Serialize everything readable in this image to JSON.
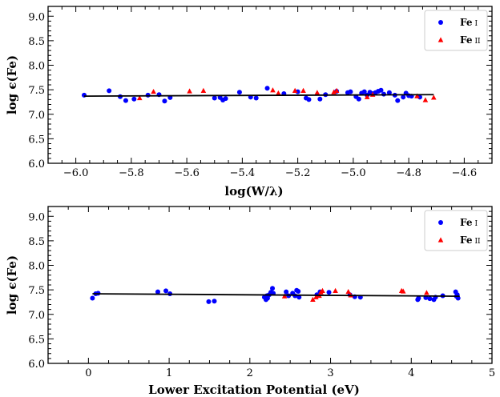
{
  "chart_data": [
    {
      "type": "scatter",
      "xlabel": "log(W/λ)",
      "ylabel": "log ϵ(Fe)",
      "xlim": [
        -6.1,
        -4.5
      ],
      "ylim": [
        6.0,
        9.2
      ],
      "xticks": [
        -6.0,
        -5.8,
        -5.6,
        -5.4,
        -5.2,
        -5.0,
        -4.8,
        -4.6
      ],
      "xtick_labels": [
        "−6.0",
        "−5.8",
        "−5.6",
        "−5.4",
        "−5.2",
        "−5.0",
        "−4.8",
        "−4.6"
      ],
      "yticks": [
        6.0,
        6.5,
        7.0,
        7.5,
        8.0,
        8.5,
        9.0
      ],
      "ytick_labels": [
        "6.0",
        "6.5",
        "7.0",
        "7.5",
        "8.0",
        "8.5",
        "9.0"
      ],
      "legend_position": "top-right",
      "grid": false,
      "series": [
        {
          "name": "Fe I",
          "name_main": "Fe",
          "name_ion": "I",
          "marker": "circle",
          "color": "#0000ff",
          "points": [
            [
              -5.97,
              7.39
            ],
            [
              -5.88,
              7.48
            ],
            [
              -5.84,
              7.36
            ],
            [
              -5.82,
              7.28
            ],
            [
              -5.79,
              7.31
            ],
            [
              -5.74,
              7.39
            ],
            [
              -5.7,
              7.4
            ],
            [
              -5.68,
              7.27
            ],
            [
              -5.66,
              7.34
            ],
            [
              -5.5,
              7.33
            ],
            [
              -5.48,
              7.34
            ],
            [
              -5.47,
              7.29
            ],
            [
              -5.46,
              7.32
            ],
            [
              -5.41,
              7.45
            ],
            [
              -5.37,
              7.35
            ],
            [
              -5.35,
              7.33
            ],
            [
              -5.31,
              7.53
            ],
            [
              -5.25,
              7.42
            ],
            [
              -5.2,
              7.46
            ],
            [
              -5.17,
              7.33
            ],
            [
              -5.16,
              7.3
            ],
            [
              -5.12,
              7.31
            ],
            [
              -5.1,
              7.4
            ],
            [
              -5.06,
              7.47
            ],
            [
              -5.02,
              7.44
            ],
            [
              -5.01,
              7.46
            ],
            [
              -4.99,
              7.36
            ],
            [
              -4.98,
              7.31
            ],
            [
              -4.97,
              7.43
            ],
            [
              -4.96,
              7.46
            ],
            [
              -4.95,
              7.39
            ],
            [
              -4.94,
              7.45
            ],
            [
              -4.93,
              7.42
            ],
            [
              -4.92,
              7.44
            ],
            [
              -4.91,
              7.47
            ],
            [
              -4.9,
              7.49
            ],
            [
              -4.89,
              7.41
            ],
            [
              -4.87,
              7.44
            ],
            [
              -4.85,
              7.39
            ],
            [
              -4.84,
              7.28
            ],
            [
              -4.82,
              7.35
            ],
            [
              -4.81,
              7.43
            ],
            [
              -4.8,
              7.38
            ],
            [
              -4.79,
              7.37
            ],
            [
              -4.76,
              7.35
            ]
          ]
        },
        {
          "name": "Fe II",
          "name_main": "Fe",
          "name_ion": "II",
          "marker": "triangle",
          "color": "#ff0000",
          "points": [
            [
              -5.77,
              7.33
            ],
            [
              -5.72,
              7.46
            ],
            [
              -5.59,
              7.47
            ],
            [
              -5.54,
              7.48
            ],
            [
              -5.29,
              7.49
            ],
            [
              -5.27,
              7.43
            ],
            [
              -5.21,
              7.48
            ],
            [
              -5.18,
              7.48
            ],
            [
              -5.13,
              7.44
            ],
            [
              -5.07,
              7.45
            ],
            [
              -5.06,
              7.48
            ],
            [
              -4.95,
              7.35
            ],
            [
              -4.93,
              7.4
            ],
            [
              -4.77,
              7.37
            ],
            [
              -4.74,
              7.29
            ],
            [
              -4.71,
              7.34
            ]
          ]
        }
      ],
      "fit_line": {
        "x": [
          -5.97,
          -4.71
        ],
        "y": [
          7.37,
          7.4
        ],
        "color": "#000000"
      }
    },
    {
      "type": "scatter",
      "xlabel": "Lower Excitation Potential (eV)",
      "ylabel": "log ϵ(Fe)",
      "xlim": [
        -0.5,
        5.0
      ],
      "ylim": [
        6.0,
        9.2
      ],
      "xticks": [
        0,
        1,
        2,
        3,
        4,
        5
      ],
      "xtick_labels": [
        "0",
        "1",
        "2",
        "3",
        "4",
        "5"
      ],
      "yticks": [
        6.0,
        6.5,
        7.0,
        7.5,
        8.0,
        8.5,
        9.0
      ],
      "ytick_labels": [
        "6.0",
        "6.5",
        "7.0",
        "7.5",
        "8.0",
        "8.5",
        "9.0"
      ],
      "legend_position": "top-right",
      "grid": false,
      "series": [
        {
          "name": "Fe I",
          "name_main": "Fe",
          "name_ion": "I",
          "marker": "circle",
          "color": "#0000ff",
          "points": [
            [
              0.05,
              7.33
            ],
            [
              0.09,
              7.42
            ],
            [
              0.12,
              7.43
            ],
            [
              0.86,
              7.46
            ],
            [
              0.96,
              7.48
            ],
            [
              1.01,
              7.42
            ],
            [
              1.49,
              7.26
            ],
            [
              1.56,
              7.27
            ],
            [
              2.18,
              7.35
            ],
            [
              2.2,
              7.3
            ],
            [
              2.21,
              7.38
            ],
            [
              2.22,
              7.33
            ],
            [
              2.24,
              7.4
            ],
            [
              2.26,
              7.45
            ],
            [
              2.28,
              7.53
            ],
            [
              2.29,
              7.43
            ],
            [
              2.45,
              7.46
            ],
            [
              2.48,
              7.38
            ],
            [
              2.53,
              7.43
            ],
            [
              2.56,
              7.38
            ],
            [
              2.58,
              7.49
            ],
            [
              2.6,
              7.47
            ],
            [
              2.61,
              7.35
            ],
            [
              2.83,
              7.4
            ],
            [
              2.87,
              7.46
            ],
            [
              2.98,
              7.45
            ],
            [
              3.24,
              7.4
            ],
            [
              3.3,
              7.36
            ],
            [
              3.37,
              7.35
            ],
            [
              4.08,
              7.3
            ],
            [
              4.09,
              7.33
            ],
            [
              4.18,
              7.34
            ],
            [
              4.23,
              7.32
            ],
            [
              4.28,
              7.3
            ],
            [
              4.3,
              7.35
            ],
            [
              4.39,
              7.38
            ],
            [
              4.55,
              7.46
            ],
            [
              4.56,
              7.37
            ],
            [
              4.58,
              7.33
            ],
            [
              4.57,
              7.4
            ]
          ]
        },
        {
          "name": "Fe II",
          "name_main": "Fe",
          "name_ion": "II",
          "marker": "triangle",
          "color": "#ff0000",
          "points": [
            [
              2.43,
              7.37
            ],
            [
              2.78,
              7.3
            ],
            [
              2.82,
              7.35
            ],
            [
              2.86,
              7.38
            ],
            [
              2.88,
              7.45
            ],
            [
              2.9,
              7.48
            ],
            [
              3.06,
              7.48
            ],
            [
              3.22,
              7.46
            ],
            [
              3.25,
              7.39
            ],
            [
              3.88,
              7.48
            ],
            [
              3.9,
              7.47
            ],
            [
              4.19,
              7.44
            ]
          ]
        }
      ],
      "fit_line": {
        "x": [
          0.05,
          4.6
        ],
        "y": [
          7.42,
          7.37
        ],
        "color": "#000000"
      }
    }
  ]
}
